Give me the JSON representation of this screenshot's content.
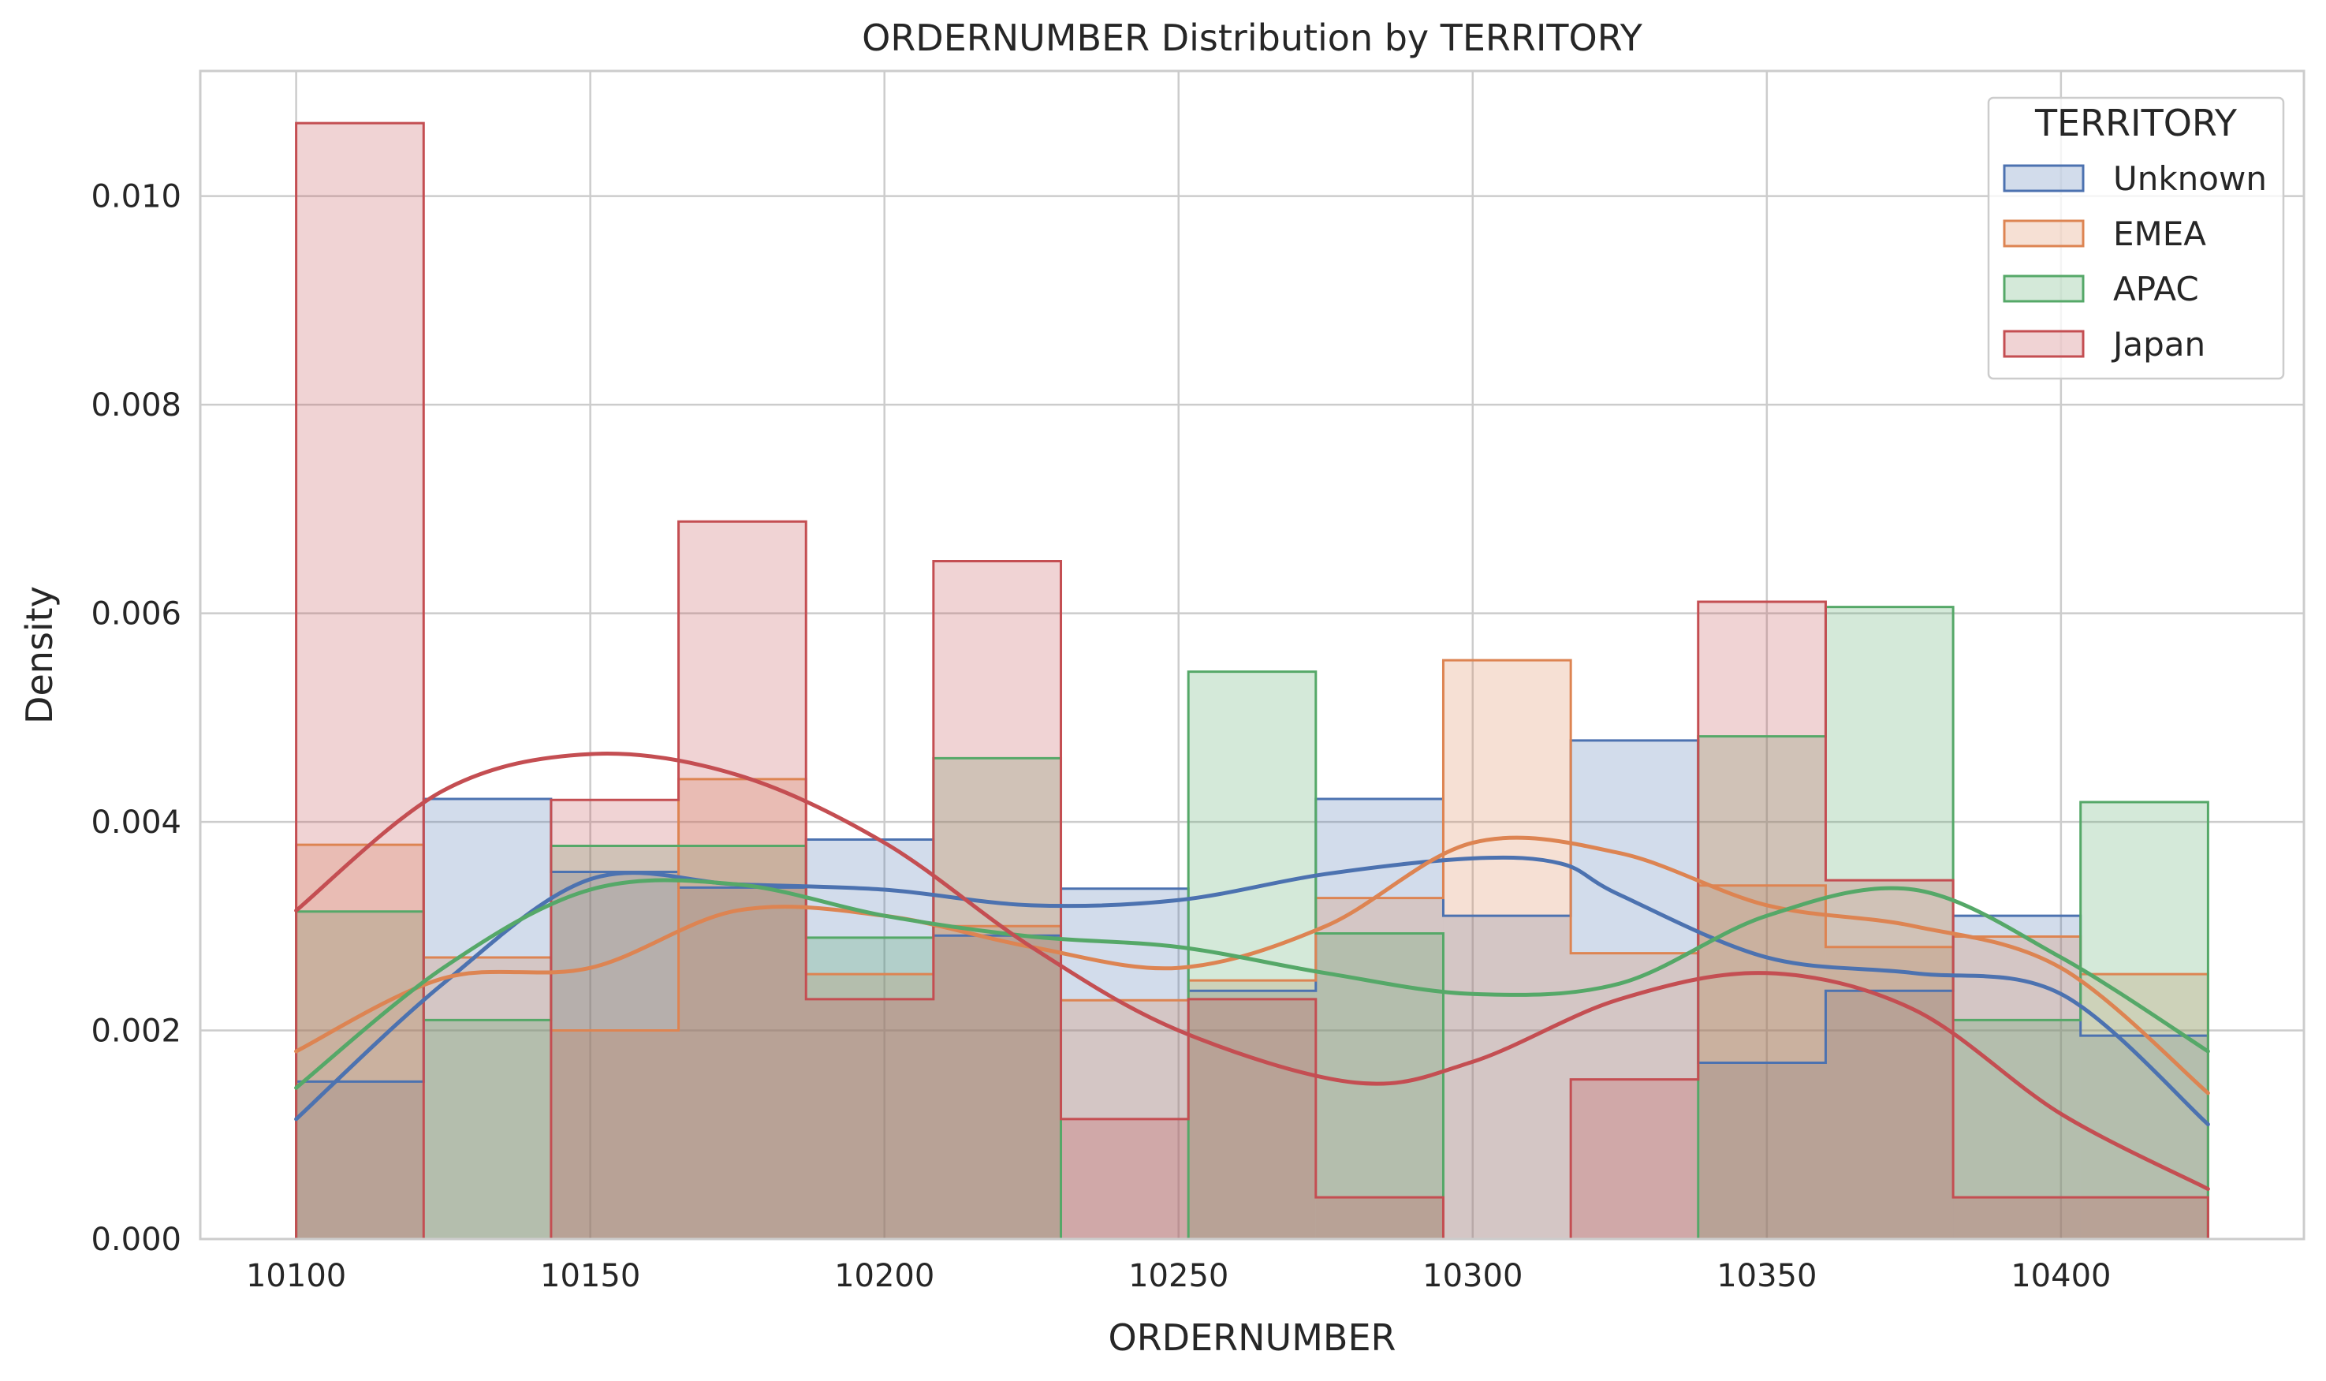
{
  "chart_data": {
    "type": "histogram",
    "title": "ORDERNUMBER Distribution by TERRITORY",
    "xlabel": "ORDERNUMBER",
    "ylabel": "Density",
    "xlim": [
      10083.7,
      10441.3
    ],
    "ylim": [
      0,
      0.0112
    ],
    "xticks": [
      10100,
      10150,
      10200,
      10250,
      10300,
      10350,
      10400
    ],
    "xtick_labels": [
      "10100",
      "10150",
      "10200",
      "10250",
      "10300",
      "10350",
      "10400"
    ],
    "yticks": [
      0,
      0.002,
      0.004,
      0.006,
      0.008,
      0.01
    ],
    "ytick_labels": [
      "0.000",
      "0.002",
      "0.004",
      "0.006",
      "0.008",
      "0.010"
    ],
    "grid": true,
    "legend": {
      "title": "TERRITORY",
      "placement": "top-right"
    },
    "bin_edges": [
      10100,
      10121.67,
      10143.33,
      10165,
      10186.67,
      10208.33,
      10230,
      10251.67,
      10273.33,
      10295,
      10316.67,
      10338.33,
      10360,
      10381.67,
      10403.33,
      10425
    ],
    "series": [
      {
        "name": "Unknown",
        "color": "#4c72b0",
        "densities": [
          0.00151,
          0.00422,
          0.00352,
          0.00337,
          0.00383,
          0.00291,
          0.00336,
          0.00238,
          0.00422,
          0.0031,
          0.00478,
          0.00169,
          0.00238,
          0.0031,
          0.00195
        ],
        "kde_x": [
          10100,
          10125,
          10150,
          10175,
          10200,
          10225,
          10250,
          10275,
          10300,
          10315,
          10325,
          10350,
          10375,
          10400,
          10425
        ],
        "kde_y": [
          0.00115,
          0.00245,
          0.00345,
          0.0034,
          0.00335,
          0.0032,
          0.00325,
          0.0035,
          0.00365,
          0.0036,
          0.0033,
          0.0027,
          0.00255,
          0.00235,
          0.0011
        ]
      },
      {
        "name": "EMEA",
        "color": "#dd8452",
        "densities": [
          0.00378,
          0.0027,
          0.002,
          0.00441,
          0.00254,
          0.003,
          0.00229,
          0.00248,
          0.00327,
          0.00555,
          0.00274,
          0.00339,
          0.0028,
          0.0029,
          0.00254
        ],
        "kde_x": [
          10100,
          10125,
          10150,
          10175,
          10200,
          10225,
          10250,
          10275,
          10300,
          10325,
          10350,
          10375,
          10400,
          10425
        ],
        "kde_y": [
          0.0018,
          0.0025,
          0.0026,
          0.00315,
          0.0031,
          0.0028,
          0.0026,
          0.003,
          0.0038,
          0.0037,
          0.0032,
          0.003,
          0.0026,
          0.0014
        ]
      },
      {
        "name": "APAC",
        "color": "#55a868",
        "densities": [
          0.00314,
          0.0021,
          0.00377,
          0.00377,
          0.00289,
          0.00461,
          0.0,
          0.00544,
          0.00293,
          0.0,
          0.0,
          0.00482,
          0.00606,
          0.0021,
          0.00419
        ],
        "kde_x": [
          10100,
          10125,
          10150,
          10175,
          10200,
          10225,
          10250,
          10275,
          10300,
          10325,
          10350,
          10375,
          10400,
          10425
        ],
        "kde_y": [
          0.00145,
          0.0026,
          0.00335,
          0.0034,
          0.0031,
          0.0029,
          0.0028,
          0.00255,
          0.00235,
          0.00245,
          0.0031,
          0.00335,
          0.0027,
          0.0018
        ]
      },
      {
        "name": "Japan",
        "color": "#c44e52",
        "densities": [
          0.0107,
          0.0,
          0.00421,
          0.00688,
          0.0023,
          0.0065,
          0.00115,
          0.0023,
          0.0004,
          0.0,
          0.00153,
          0.00611,
          0.00344,
          0.0004,
          0.0004
        ],
        "kde_x": [
          10100,
          10125,
          10150,
          10175,
          10200,
          10225,
          10250,
          10280,
          10300,
          10325,
          10350,
          10375,
          10400,
          10425
        ],
        "kde_y": [
          0.00315,
          0.0043,
          0.00465,
          0.00445,
          0.0038,
          0.0028,
          0.002,
          0.0015,
          0.0017,
          0.0023,
          0.00255,
          0.0022,
          0.0012,
          0.00048
        ]
      }
    ]
  }
}
